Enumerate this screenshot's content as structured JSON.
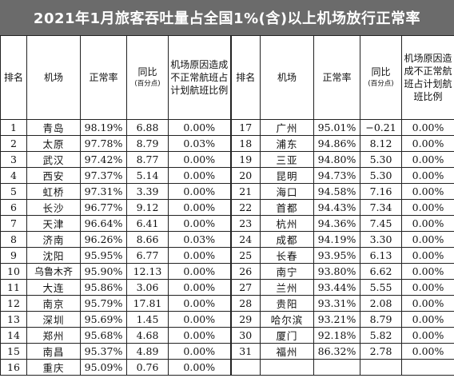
{
  "title": "2021年1月旅客吞吐量占全国1%(含)以上机场放行正常率",
  "headers": {
    "rank": "排名",
    "airport": "机场",
    "rate": "正常率",
    "yoy": "同比",
    "yoy_unit": "(百分点)",
    "cancel_ratio": "机场原因造成不正常航班占计划航班比例"
  },
  "rows": [
    {
      "rank": "1",
      "airport": "青岛",
      "rate": "98.19%",
      "yoy": "6.88",
      "cancel": "0.00%"
    },
    {
      "rank": "2",
      "airport": "太原",
      "rate": "97.78%",
      "yoy": "8.79",
      "cancel": "0.03%"
    },
    {
      "rank": "3",
      "airport": "武汉",
      "rate": "97.42%",
      "yoy": "8.77",
      "cancel": "0.00%"
    },
    {
      "rank": "4",
      "airport": "西安",
      "rate": "97.37%",
      "yoy": "5.14",
      "cancel": "0.00%"
    },
    {
      "rank": "5",
      "airport": "虹桥",
      "rate": "97.31%",
      "yoy": "3.39",
      "cancel": "0.00%"
    },
    {
      "rank": "6",
      "airport": "长沙",
      "rate": "96.77%",
      "yoy": "9.12",
      "cancel": "0.00%"
    },
    {
      "rank": "7",
      "airport": "天津",
      "rate": "96.64%",
      "yoy": "6.41",
      "cancel": "0.00%"
    },
    {
      "rank": "8",
      "airport": "济南",
      "rate": "96.26%",
      "yoy": "8.66",
      "cancel": "0.03%"
    },
    {
      "rank": "9",
      "airport": "沈阳",
      "rate": "95.95%",
      "yoy": "6.77",
      "cancel": "0.00%"
    },
    {
      "rank": "10",
      "airport": "乌鲁木齐",
      "rate": "95.90%",
      "yoy": "12.13",
      "cancel": "0.00%"
    },
    {
      "rank": "11",
      "airport": "大连",
      "rate": "95.86%",
      "yoy": "3.06",
      "cancel": "0.00%"
    },
    {
      "rank": "12",
      "airport": "南京",
      "rate": "95.79%",
      "yoy": "17.81",
      "cancel": "0.00%"
    },
    {
      "rank": "13",
      "airport": "深圳",
      "rate": "95.69%",
      "yoy": "1.45",
      "cancel": "0.00%"
    },
    {
      "rank": "14",
      "airport": "郑州",
      "rate": "95.68%",
      "yoy": "4.68",
      "cancel": "0.00%"
    },
    {
      "rank": "15",
      "airport": "南昌",
      "rate": "95.37%",
      "yoy": "4.89",
      "cancel": "0.00%"
    },
    {
      "rank": "16",
      "airport": "重庆",
      "rate": "95.09%",
      "yoy": "0.76",
      "cancel": "0.00%"
    },
    {
      "rank": "17",
      "airport": "广州",
      "rate": "95.01%",
      "yoy": "−0.21",
      "cancel": "0.00%"
    },
    {
      "rank": "18",
      "airport": "浦东",
      "rate": "94.86%",
      "yoy": "8.12",
      "cancel": "0.00%"
    },
    {
      "rank": "19",
      "airport": "三亚",
      "rate": "94.80%",
      "yoy": "5.30",
      "cancel": "0.00%"
    },
    {
      "rank": "20",
      "airport": "昆明",
      "rate": "94.73%",
      "yoy": "5.30",
      "cancel": "0.00%"
    },
    {
      "rank": "21",
      "airport": "海口",
      "rate": "94.58%",
      "yoy": "7.16",
      "cancel": "0.00%"
    },
    {
      "rank": "22",
      "airport": "首都",
      "rate": "94.43%",
      "yoy": "7.34",
      "cancel": "0.00%"
    },
    {
      "rank": "23",
      "airport": "杭州",
      "rate": "94.36%",
      "yoy": "7.45",
      "cancel": "0.00%"
    },
    {
      "rank": "24",
      "airport": "成都",
      "rate": "94.19%",
      "yoy": "3.30",
      "cancel": "0.00%"
    },
    {
      "rank": "25",
      "airport": "长春",
      "rate": "93.95%",
      "yoy": "6.13",
      "cancel": "0.00%"
    },
    {
      "rank": "26",
      "airport": "南宁",
      "rate": "93.80%",
      "yoy": "6.62",
      "cancel": "0.00%"
    },
    {
      "rank": "27",
      "airport": "兰州",
      "rate": "93.44%",
      "yoy": "5.55",
      "cancel": "0.00%"
    },
    {
      "rank": "28",
      "airport": "贵阳",
      "rate": "93.31%",
      "yoy": "2.08",
      "cancel": "0.00%"
    },
    {
      "rank": "29",
      "airport": "哈尔滨",
      "rate": "93.21%",
      "yoy": "8.79",
      "cancel": "0.00%"
    },
    {
      "rank": "30",
      "airport": "厦门",
      "rate": "92.18%",
      "yoy": "5.82",
      "cancel": "0.00%"
    },
    {
      "rank": "31",
      "airport": "福州",
      "rate": "86.32%",
      "yoy": "2.78",
      "cancel": "0.00%"
    }
  ]
}
